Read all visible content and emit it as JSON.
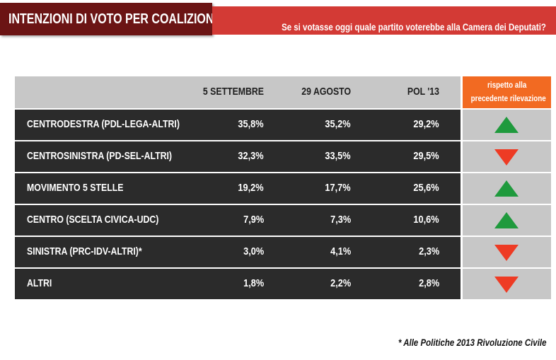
{
  "header": {
    "title": "INTENZIONI DI VOTO PER COALIZIONE",
    "question": "Se si votasse oggi quale partito voterebbe alla Camera dei Deputati?"
  },
  "colors": {
    "title_bg": "#6b1414",
    "question_bg": "#d33a35",
    "row_bg": "#2b2b2b",
    "header_bg": "#c7c7c7",
    "trend_header_bg": "#f26a22",
    "up": "#1f9a3d",
    "down": "#ee3b24"
  },
  "chart_data": {
    "type": "table",
    "columns": [
      "5 SETTEMBRE",
      "29 AGOSTO",
      "POL '13"
    ],
    "trend_header": [
      "rispetto alla",
      "precedente rilevazione"
    ],
    "rows": [
      {
        "label": "CENTRODESTRA (PDL-LEGA-ALTRI)",
        "values": [
          "35,8%",
          "35,2%",
          "29,2%"
        ],
        "trend": "up"
      },
      {
        "label": "CENTROSINISTRA (PD-SEL-ALTRI)",
        "values": [
          "32,3%",
          "33,5%",
          "29,5%"
        ],
        "trend": "down"
      },
      {
        "label": "MOVIMENTO 5 STELLE",
        "values": [
          "19,2%",
          "17,7%",
          "25,6%"
        ],
        "trend": "up"
      },
      {
        "label": "CENTRO (SCELTA CIVICA-UDC)",
        "values": [
          "7,9%",
          "7,3%",
          "10,6%"
        ],
        "trend": "up"
      },
      {
        "label": "SINISTRA (PRC-IDV-ALTRI)*",
        "values": [
          "3,0%",
          "4,1%",
          "2,3%"
        ],
        "trend": "down"
      },
      {
        "label": "ALTRI",
        "values": [
          "1,8%",
          "2,2%",
          "2,8%"
        ],
        "trend": "down"
      }
    ]
  },
  "footnote": "* Alle Politiche 2013 Rivoluzione Civile"
}
